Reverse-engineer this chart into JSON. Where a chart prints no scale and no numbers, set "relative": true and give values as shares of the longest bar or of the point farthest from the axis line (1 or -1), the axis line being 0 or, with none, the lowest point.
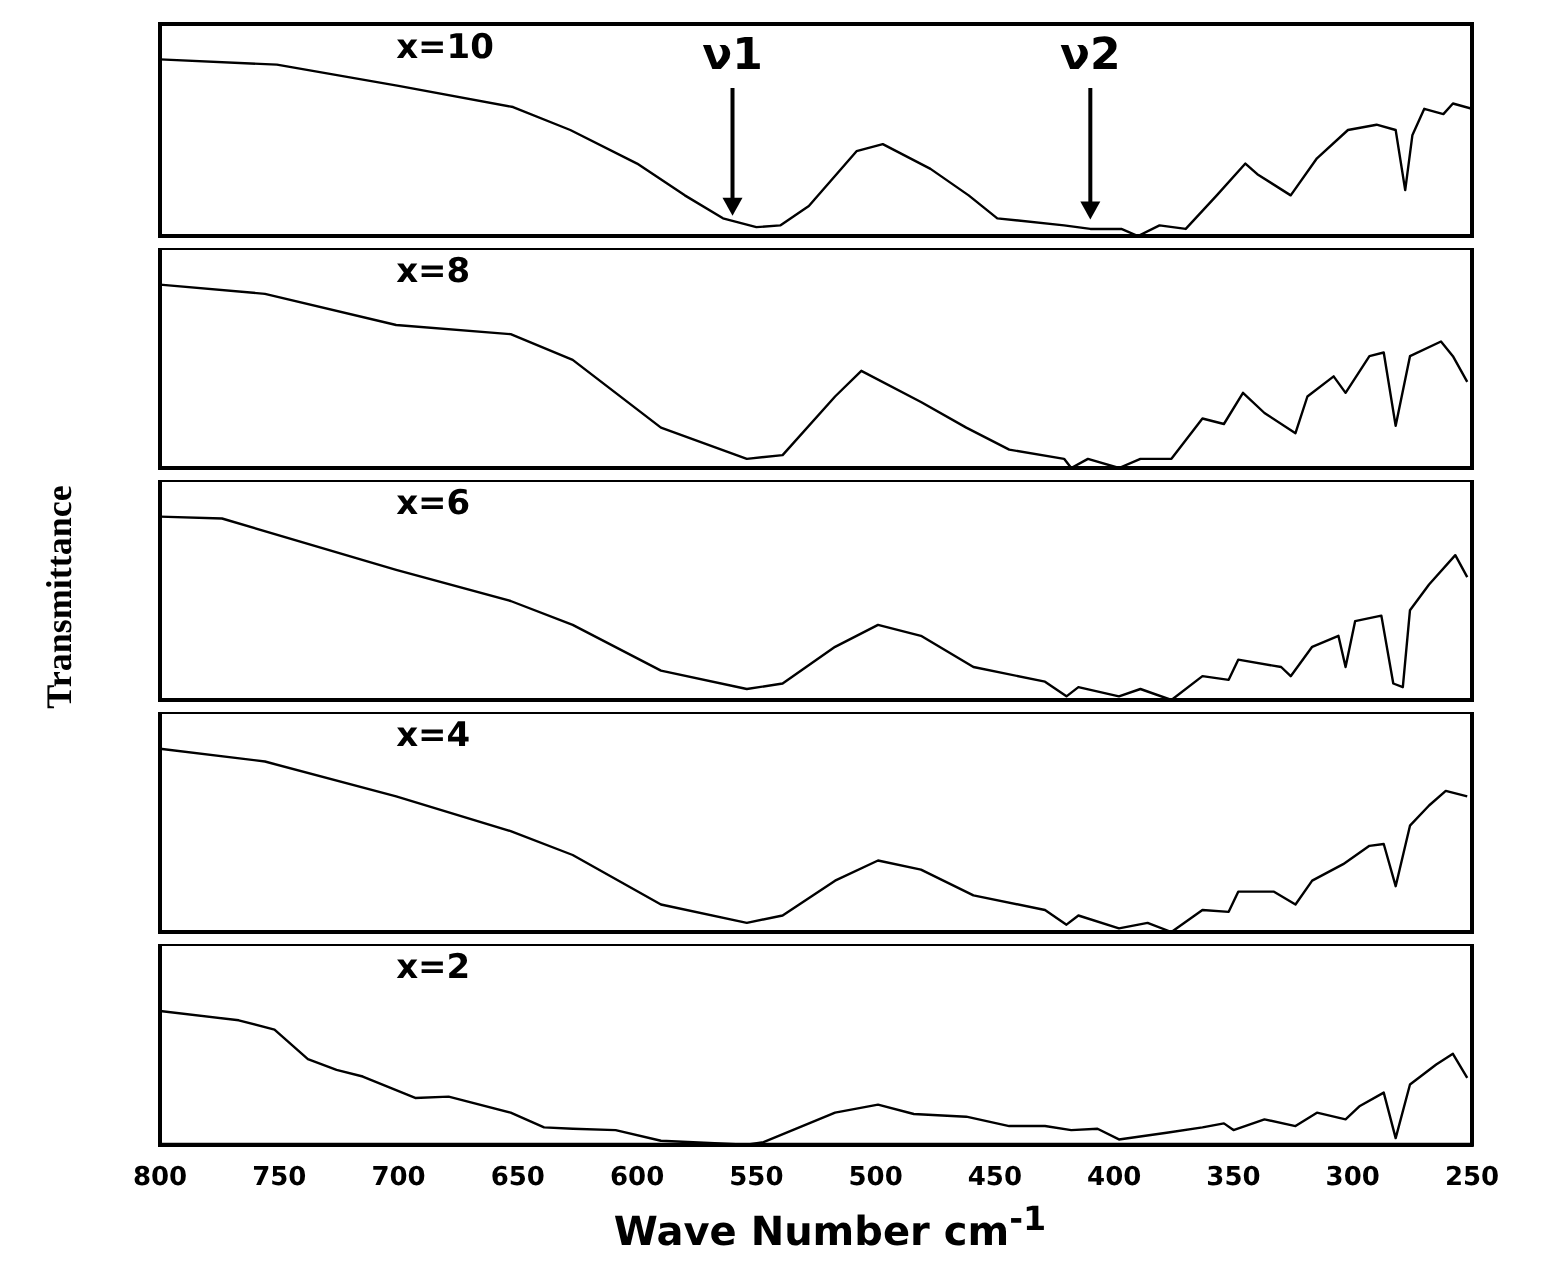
{
  "chart_data": [
    {
      "type": "line",
      "title": "x=10",
      "relative": true,
      "xlim": [
        800,
        250
      ],
      "xticks": [
        800,
        750,
        700,
        650,
        600,
        550,
        500,
        450,
        400,
        350,
        300,
        250
      ],
      "tick_labels": false,
      "marker": "none",
      "line_style": "solid",
      "annotations": [
        {
          "text": "ν1",
          "x": 560,
          "y": 0.08
        },
        {
          "text": "ν2",
          "x": 410,
          "y": 0.06
        }
      ],
      "x": [
        800,
        751,
        700,
        652,
        628,
        600,
        580,
        564,
        550,
        540,
        528,
        508,
        497,
        477,
        461,
        449,
        421,
        410,
        397,
        390,
        381,
        370,
        357,
        345,
        340,
        326,
        315,
        302,
        290,
        282,
        278,
        275,
        270,
        262,
        258,
        250
      ],
      "series": [
        {
          "color": "#000000",
          "values": [
            1.0,
            0.97,
            0.85,
            0.73,
            0.6,
            0.41,
            0.23,
            0.1,
            0.05,
            0.06,
            0.17,
            0.48,
            0.52,
            0.38,
            0.23,
            0.1,
            0.06,
            0.04,
            0.04,
            0,
            0.06,
            0.04,
            0.23,
            0.41,
            0.35,
            0.23,
            0.44,
            0.6,
            0.63,
            0.6,
            0.26,
            0.57,
            0.72,
            0.69,
            0.75,
            0.72
          ]
        }
      ]
    },
    {
      "type": "line",
      "title": "x=8",
      "relative": true,
      "xlim": [
        800,
        250
      ],
      "xticks": [
        800,
        750,
        700,
        650,
        600,
        550,
        500,
        450,
        400,
        350,
        300,
        250
      ],
      "tick_labels": false,
      "marker": "none",
      "line_style": "solid",
      "x": [
        800,
        756,
        701,
        653,
        627,
        590,
        554,
        539,
        517,
        506,
        481,
        462,
        444,
        421,
        418,
        411,
        398,
        389,
        376,
        363,
        354,
        346,
        337,
        324,
        319,
        308,
        303,
        293,
        287,
        282,
        276,
        263,
        258,
        252
      ],
      "series": [
        {
          "color": "#000000",
          "values": [
            1.0,
            0.95,
            0.78,
            0.73,
            0.59,
            0.22,
            0.05,
            0.07,
            0.39,
            0.53,
            0.36,
            0.22,
            0.1,
            0.05,
            0,
            0.05,
            0,
            0.05,
            0.05,
            0.27,
            0.24,
            0.41,
            0.3,
            0.19,
            0.39,
            0.5,
            0.41,
            0.61,
            0.63,
            0.23,
            0.61,
            0.69,
            0.61,
            0.47
          ]
        }
      ]
    },
    {
      "type": "line",
      "title": "x=6",
      "relative": true,
      "xlim": [
        800,
        250
      ],
      "xticks": [
        800,
        750,
        700,
        650,
        600,
        550,
        500,
        450,
        400,
        350,
        300,
        250
      ],
      "tick_labels": false,
      "marker": "none",
      "line_style": "solid",
      "x": [
        800,
        774,
        701,
        653,
        627,
        590,
        554,
        539,
        517,
        499,
        481,
        459,
        429,
        420,
        415,
        398,
        389,
        376,
        363,
        352,
        348,
        330,
        326,
        317,
        306,
        303,
        299,
        288,
        283,
        279,
        276,
        268,
        257,
        252
      ],
      "series": [
        {
          "color": "#000000",
          "values": [
            1.0,
            0.99,
            0.71,
            0.54,
            0.41,
            0.16,
            0.06,
            0.09,
            0.29,
            0.41,
            0.35,
            0.18,
            0.1,
            0.02,
            0.07,
            0.02,
            0.06,
            0,
            0.13,
            0.11,
            0.22,
            0.18,
            0.13,
            0.29,
            0.35,
            0.18,
            0.43,
            0.46,
            0.09,
            0.07,
            0.49,
            0.63,
            0.79,
            0.67
          ]
        }
      ]
    },
    {
      "type": "line",
      "title": "x=4",
      "relative": true,
      "xlim": [
        800,
        250
      ],
      "xticks": [
        800,
        750,
        700,
        650,
        600,
        550,
        500,
        450,
        400,
        350,
        300,
        250
      ],
      "tick_labels": false,
      "marker": "none",
      "line_style": "solid",
      "x": [
        800,
        756,
        701,
        653,
        627,
        590,
        554,
        539,
        517,
        499,
        481,
        459,
        429,
        420,
        415,
        398,
        386,
        376,
        363,
        352,
        348,
        333,
        324,
        317,
        304,
        293,
        287,
        282,
        276,
        268,
        261,
        252
      ],
      "series": [
        {
          "color": "#000000",
          "values": [
            1.0,
            0.93,
            0.74,
            0.55,
            0.42,
            0.15,
            0.05,
            0.09,
            0.28,
            0.39,
            0.34,
            0.2,
            0.12,
            0.04,
            0.09,
            0.02,
            0.05,
            0,
            0.12,
            0.11,
            0.22,
            0.22,
            0.15,
            0.28,
            0.37,
            0.47,
            0.48,
            0.25,
            0.58,
            0.69,
            0.77,
            0.74
          ]
        }
      ]
    },
    {
      "type": "line",
      "title": "x=2",
      "relative": true,
      "xlabel": "Wave Number cm$^{-1}$",
      "ylabel": "Transmittance",
      "xlim": [
        800,
        250
      ],
      "xticks": [
        800,
        750,
        700,
        650,
        600,
        550,
        500,
        450,
        400,
        350,
        300,
        250
      ],
      "tick_labels": "x",
      "marker": "none",
      "line_style": "solid",
      "x": [
        800,
        767,
        752,
        738,
        726,
        715,
        693,
        679,
        653,
        639,
        627,
        609,
        590,
        554,
        547,
        517,
        499,
        484,
        462,
        444,
        429,
        418,
        407,
        398,
        378,
        363,
        354,
        350,
        337,
        324,
        315,
        303,
        297,
        287,
        282,
        276,
        265,
        258,
        252
      ],
      "series": [
        {
          "color": "#000000",
          "values": [
            1.0,
            0.93,
            0.86,
            0.64,
            0.56,
            0.51,
            0.35,
            0.36,
            0.24,
            0.13,
            0.12,
            0.11,
            0.03,
            0,
            0.02,
            0.24,
            0.3,
            0.23,
            0.21,
            0.14,
            0.14,
            0.11,
            0.12,
            0.04,
            0.09,
            0.13,
            0.16,
            0.11,
            0.19,
            0.14,
            0.24,
            0.19,
            0.29,
            0.39,
            0.05,
            0.45,
            0.6,
            0.68,
            0.5
          ]
        }
      ]
    }
  ]
}
